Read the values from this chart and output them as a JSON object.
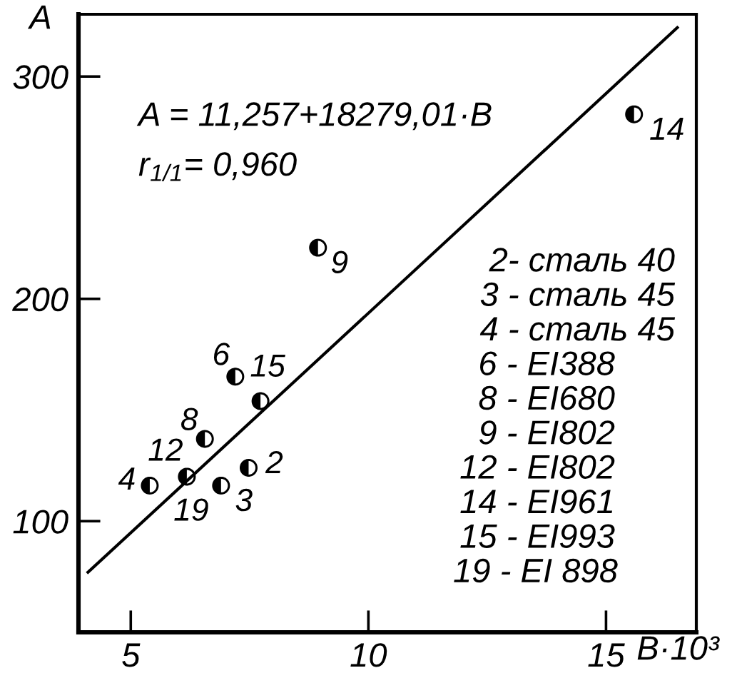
{
  "chart_data": {
    "type": "scatter",
    "xlabel": "B·10³",
    "ylabel": "A",
    "xlim": [
      3.9,
      16.9
    ],
    "ylim": [
      50,
      328
    ],
    "xticks": [
      5,
      10,
      15
    ],
    "yticks": [
      100,
      200,
      300
    ],
    "marker": "circle",
    "series": [
      {
        "color": "#000000",
        "x": [
          5.4,
          6.18,
          6.56,
          7.2,
          7.73,
          7.48,
          6.9,
          8.94,
          15.59
        ],
        "values": [
          116,
          120,
          137,
          165,
          154,
          124,
          116,
          223,
          283
        ]
      },
      {
        "type": "line",
        "color": "#000000",
        "marker": "none",
        "line_style": "solid",
        "x": [
          4.1,
          16.5
        ],
        "values": [
          77,
          322
        ]
      }
    ],
    "annotations": [
      {
        "text": "4",
        "x": 5.4,
        "y": 116
      },
      {
        "text": "19",
        "x": 6.18,
        "y": 120
      },
      {
        "text": "12",
        "x": 6.18,
        "y": 120
      },
      {
        "text": "8",
        "x": 6.56,
        "y": 137
      },
      {
        "text": "6",
        "x": 7.2,
        "y": 165
      },
      {
        "text": "15",
        "x": 7.73,
        "y": 154
      },
      {
        "text": "2",
        "x": 7.48,
        "y": 124
      },
      {
        "text": "3",
        "x": 6.9,
        "y": 116
      },
      {
        "text": "9",
        "x": 8.94,
        "y": 223
      },
      {
        "text": "14",
        "x": 15.59,
        "y": 283
      },
      "A = 11,257+18279,01·B",
      "r$_{1/1}$= 0,960",
      "2- сталь 40",
      "3 - сталь 45",
      "4 - сталь 45",
      "6 - EI388",
      "8 - EI680",
      "9 - EI802",
      "12 - EI802",
      "14 - EI961",
      "15 - EI993",
      "19 - EI 898"
    ]
  }
}
